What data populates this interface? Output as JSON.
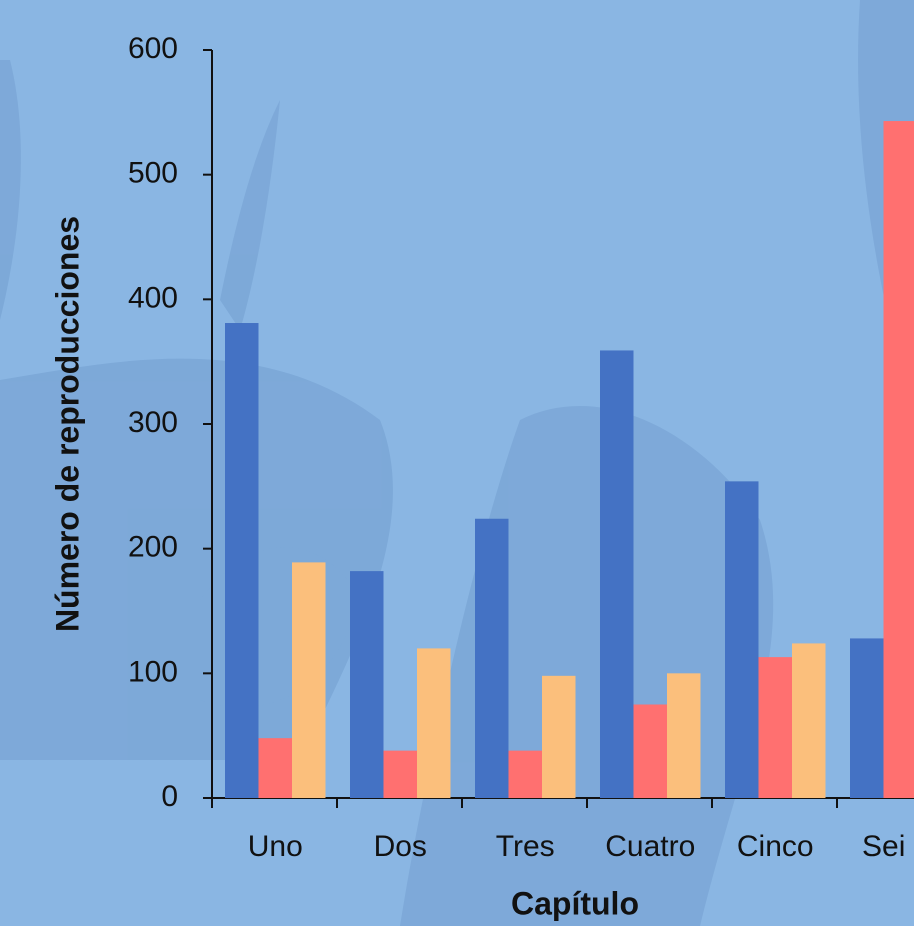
{
  "chart_data": {
    "type": "bar",
    "x_label": "Capítulo",
    "y_label": "Número de reproducciones",
    "categories": [
      "Uno",
      "Dos",
      "Tres",
      "Cuatro",
      "Cinco",
      "Sei"
    ],
    "series": [
      {
        "color": "#4472c4",
        "values": [
          381,
          182,
          224,
          359,
          254,
          128
        ]
      },
      {
        "color": "#ff7070",
        "values": [
          48,
          38,
          38,
          75,
          113,
          543
        ]
      },
      {
        "color": "#fbbf7c",
        "values": [
          189,
          120,
          98,
          100,
          124,
          null
        ]
      }
    ],
    "ylim": [
      0,
      600
    ],
    "yticks": [
      0,
      100,
      200,
      300,
      400,
      500,
      600
    ]
  }
}
